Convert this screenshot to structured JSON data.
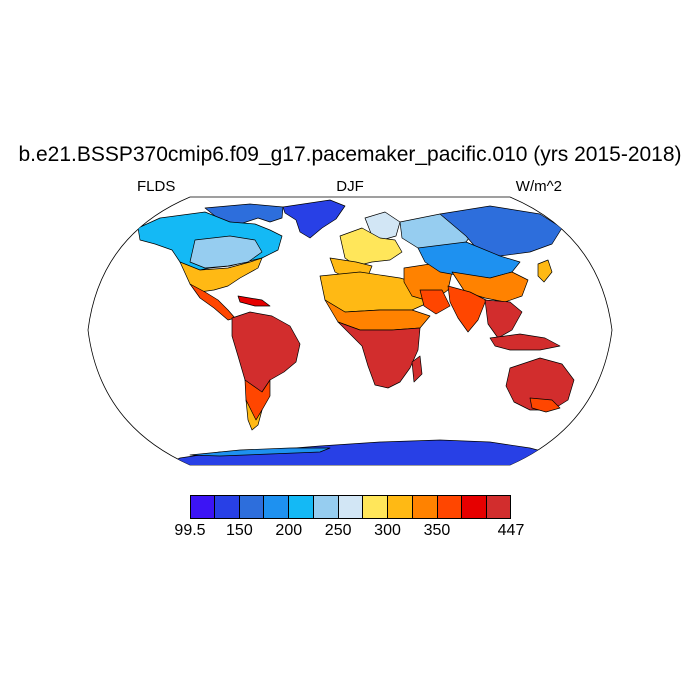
{
  "title": "b.e21.BSSP370cmip6.f09_g17.pacemaker_pacific.010 (yrs 2015-2018)",
  "left_label": "FLDS",
  "center_label": "DJF",
  "right_label": "W/m^2",
  "colorbar": {
    "colors": [
      "#3c14f5",
      "#2840e6",
      "#2d6edc",
      "#1e91f0",
      "#14b9f5",
      "#96cdf0",
      "#d2e6f5",
      "#ffe65a",
      "#ffb914",
      "#ff8200",
      "#ff4600",
      "#e60000",
      "#d22d2d"
    ],
    "tick_labels": [
      "99.5",
      "150",
      "200",
      "250",
      "300",
      "350",
      "447"
    ],
    "min": 99.5,
    "max": 447
  },
  "map": {
    "projection": "Robinson",
    "variable": "FLDS",
    "season": "DJF"
  }
}
